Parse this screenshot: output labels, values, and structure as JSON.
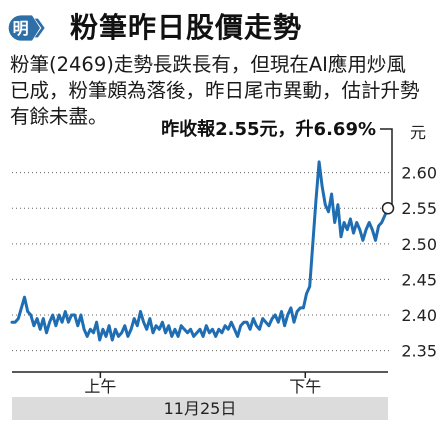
{
  "header": {
    "logo_glyph": "明",
    "title": "粉筆昨日股價走勢"
  },
  "article": {
    "lines": [
      "粉筆(2469)走勢長跌長有，但現在AI應用炒風",
      "已成，粉筆頗為落後，昨日尾市異動，估計升勢",
      "有餘未盡。"
    ]
  },
  "colors": {
    "line": "#1f6db3",
    "logo_bg": "#2f6fa8",
    "date_bar": "#dcdcdc"
  },
  "chart_data": {
    "type": "line",
    "title": "",
    "xlabel": "",
    "ylabel": "元",
    "ylim": [
      2.32,
      2.65
    ],
    "yticks": [
      "2.60",
      "2.55",
      "2.50",
      "2.45",
      "2.40",
      "2.35"
    ],
    "ytick_values": [
      2.6,
      2.55,
      2.5,
      2.45,
      2.4,
      2.35
    ],
    "x_sessions": [
      "上午",
      "下午"
    ],
    "date_label": "11月25日",
    "annotation": "昨收報2.55元，升6.69%",
    "series": [
      {
        "x": [
          0,
          2,
          4,
          6,
          8,
          10,
          12,
          14,
          16,
          18,
          20,
          22,
          24,
          26,
          28,
          30,
          32,
          34,
          36,
          38,
          40,
          42,
          44,
          46,
          48,
          50,
          52,
          54,
          56,
          58,
          60,
          62,
          64,
          66,
          68,
          70,
          72,
          74,
          76,
          78,
          80,
          82,
          84,
          86,
          88,
          90,
          92,
          94,
          96,
          98,
          100,
          102,
          104,
          106,
          108,
          110,
          112,
          114,
          116,
          118,
          120,
          122,
          124,
          126,
          128,
          130,
          132,
          134,
          136,
          138,
          140,
          142,
          144,
          146,
          148,
          150,
          152,
          154,
          156,
          158,
          160,
          162,
          164,
          166,
          168,
          170,
          172,
          174,
          176,
          178,
          180,
          182,
          184,
          186,
          188,
          190,
          192,
          194,
          196,
          198,
          200,
          202,
          204,
          206,
          208,
          210,
          212,
          214,
          216,
          218,
          220,
          222,
          224,
          226,
          228,
          230,
          232,
          234,
          236,
          238,
          240
        ],
        "y": [
          2.39,
          2.39,
          2.395,
          2.41,
          2.425,
          2.405,
          2.4,
          2.385,
          2.395,
          2.38,
          2.395,
          2.375,
          2.39,
          2.4,
          2.385,
          2.4,
          2.39,
          2.405,
          2.39,
          2.4,
          2.4,
          2.385,
          2.4,
          2.38,
          2.37,
          2.38,
          2.375,
          2.39,
          2.365,
          2.38,
          2.37,
          2.385,
          2.365,
          2.38,
          2.37,
          2.375,
          2.385,
          2.37,
          2.38,
          2.395,
          2.385,
          2.405,
          2.39,
          2.38,
          2.395,
          2.375,
          2.385,
          2.38,
          2.39,
          2.375,
          2.385,
          2.37,
          2.38,
          2.37,
          2.385,
          2.38,
          2.375,
          2.38,
          2.37,
          2.375,
          2.38,
          2.37,
          2.385,
          2.375,
          2.38,
          2.37,
          2.38,
          2.375,
          2.385,
          2.38,
          2.39,
          2.38,
          2.37,
          2.385,
          2.39,
          2.39,
          2.38,
          2.395,
          2.385,
          2.38,
          2.395,
          2.39,
          2.385,
          2.395,
          2.4,
          2.39,
          2.405,
          2.385,
          2.4,
          2.41,
          2.39,
          2.405,
          2.41,
          2.41,
          2.43,
          2.44,
          2.5,
          2.56,
          2.615,
          2.58,
          2.555,
          2.545,
          2.57,
          2.53,
          2.555,
          2.51,
          2.53,
          2.52,
          2.535,
          2.515,
          2.53,
          2.52,
          2.505,
          2.52,
          2.53,
          2.52,
          2.505,
          2.525,
          2.53,
          2.54,
          2.55
        ]
      }
    ]
  }
}
